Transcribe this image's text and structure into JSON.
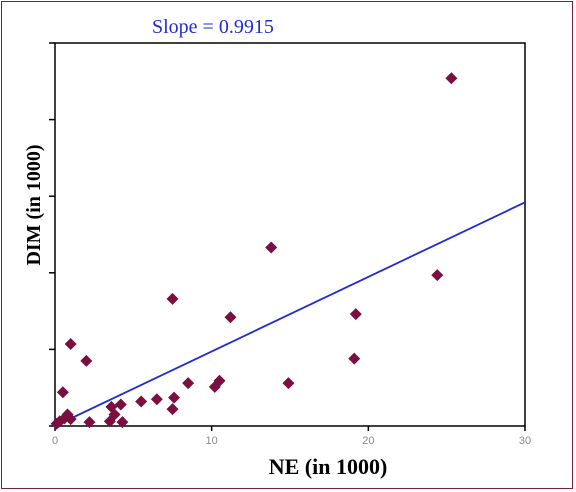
{
  "chart_data": {
    "type": "scatter",
    "annotation": "Slope = 0.9915",
    "xlabel": "NE (in 1000)",
    "ylabel": "DIM (in 1000)",
    "xlim": [
      0,
      30
    ],
    "ylim": [
      0,
      50
    ],
    "x_ticks": [
      0,
      10,
      20,
      30
    ],
    "y_ticks": [
      0,
      10,
      20,
      30,
      40,
      50
    ],
    "marker_color": "#7b1040",
    "line_color": "#1f2bd6",
    "trendline": {
      "slope": 0.9915,
      "intercept": 0,
      "x_range": [
        0,
        30
      ]
    },
    "points": [
      {
        "x": 25.3,
        "y": 45.4
      },
      {
        "x": 13.8,
        "y": 23.3
      },
      {
        "x": 24.4,
        "y": 19.7
      },
      {
        "x": 7.5,
        "y": 16.6
      },
      {
        "x": 11.2,
        "y": 14.2
      },
      {
        "x": 19.2,
        "y": 14.6
      },
      {
        "x": 1.0,
        "y": 10.7
      },
      {
        "x": 2.0,
        "y": 8.5
      },
      {
        "x": 19.1,
        "y": 8.8
      },
      {
        "x": 0.5,
        "y": 4.4
      },
      {
        "x": 8.5,
        "y": 5.6
      },
      {
        "x": 10.5,
        "y": 5.9
      },
      {
        "x": 10.2,
        "y": 5.1
      },
      {
        "x": 14.9,
        "y": 5.6
      },
      {
        "x": 5.5,
        "y": 3.2
      },
      {
        "x": 6.5,
        "y": 3.5
      },
      {
        "x": 7.6,
        "y": 3.7
      },
      {
        "x": 7.5,
        "y": 2.2
      },
      {
        "x": 3.6,
        "y": 2.5
      },
      {
        "x": 4.2,
        "y": 2.8
      },
      {
        "x": 3.8,
        "y": 1.5
      },
      {
        "x": 0.8,
        "y": 1.5
      },
      {
        "x": 0.6,
        "y": 1.0
      },
      {
        "x": 0.3,
        "y": 0.6
      },
      {
        "x": 2.2,
        "y": 0.5
      },
      {
        "x": 3.5,
        "y": 0.6
      },
      {
        "x": 4.3,
        "y": 0.5
      },
      {
        "x": 1.0,
        "y": 0.9
      },
      {
        "x": 0.1,
        "y": 0.3
      }
    ]
  }
}
